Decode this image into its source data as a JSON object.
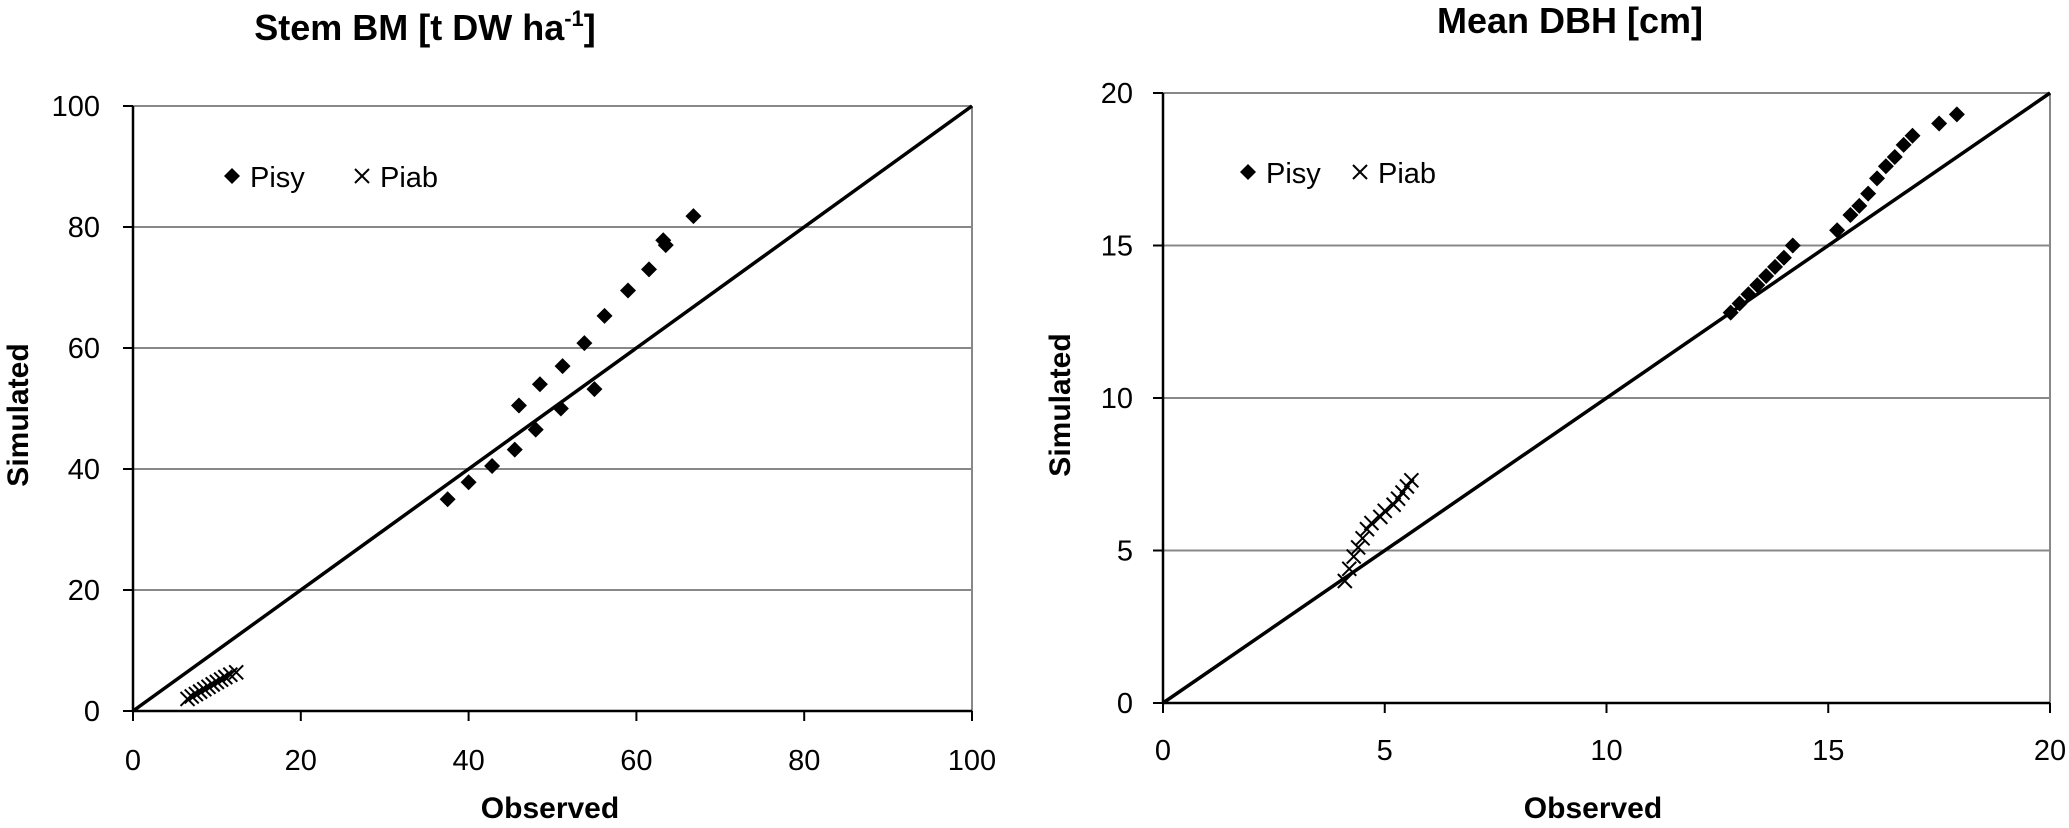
{
  "chart_data": [
    {
      "type": "scatter",
      "title": "Stem BM [t DW ha",
      "title_sup": "-1",
      "title_end": "]",
      "xlabel": "Observed",
      "ylabel": "Simulated",
      "xlim": [
        0,
        100
      ],
      "ylim": [
        0,
        100
      ],
      "xticks": [
        0,
        20,
        40,
        60,
        80,
        100
      ],
      "yticks": [
        0,
        20,
        40,
        60,
        80,
        100
      ],
      "grid": "horizontal",
      "legend_position": "top-left",
      "reference_line": [
        [
          0,
          0
        ],
        [
          100,
          100
        ]
      ],
      "series": [
        {
          "name": "Pisy",
          "marker": "diamond",
          "points": [
            [
              37.5,
              35.0
            ],
            [
              40.0,
              37.8
            ],
            [
              42.8,
              40.5
            ],
            [
              45.5,
              43.2
            ],
            [
              48.0,
              46.5
            ],
            [
              51.0,
              50.0
            ],
            [
              55.0,
              53.2
            ],
            [
              46.0,
              50.5
            ],
            [
              48.5,
              54.0
            ],
            [
              51.2,
              57.0
            ],
            [
              53.8,
              60.8
            ],
            [
              56.2,
              65.3
            ],
            [
              59.0,
              69.5
            ],
            [
              61.5,
              73.0
            ],
            [
              63.5,
              77.0
            ],
            [
              63.2,
              77.8
            ],
            [
              66.8,
              81.8
            ]
          ]
        },
        {
          "name": "Piab",
          "marker": "x",
          "points": [
            [
              6.5,
              2.0
            ],
            [
              7.0,
              2.4
            ],
            [
              7.5,
              2.8
            ],
            [
              8.0,
              3.2
            ],
            [
              8.5,
              3.6
            ],
            [
              9.0,
              4.0
            ],
            [
              9.5,
              4.4
            ],
            [
              10.0,
              4.8
            ],
            [
              10.5,
              5.2
            ],
            [
              11.0,
              5.6
            ],
            [
              11.6,
              6.0
            ],
            [
              12.3,
              6.4
            ]
          ]
        }
      ]
    },
    {
      "type": "scatter",
      "title": "Mean DBH [cm]",
      "xlabel": "Observed",
      "ylabel": "Simulated",
      "xlim": [
        0,
        20
      ],
      "ylim": [
        0,
        20
      ],
      "xticks": [
        0,
        5,
        10,
        15,
        20
      ],
      "yticks": [
        0,
        5,
        10,
        15,
        20
      ],
      "grid": "horizontal",
      "legend_position": "top-left",
      "reference_line": [
        [
          0,
          0
        ],
        [
          20,
          20
        ]
      ],
      "series": [
        {
          "name": "Pisy",
          "marker": "diamond",
          "points": [
            [
              12.8,
              12.8
            ],
            [
              13.0,
              13.1
            ],
            [
              13.2,
              13.4
            ],
            [
              13.4,
              13.7
            ],
            [
              13.6,
              14.0
            ],
            [
              13.8,
              14.3
            ],
            [
              14.0,
              14.6
            ],
            [
              14.2,
              15.0
            ],
            [
              15.2,
              15.5
            ],
            [
              15.5,
              16.0
            ],
            [
              15.7,
              16.3
            ],
            [
              15.9,
              16.7
            ],
            [
              16.1,
              17.2
            ],
            [
              16.3,
              17.6
            ],
            [
              16.5,
              17.9
            ],
            [
              16.7,
              18.3
            ],
            [
              16.9,
              18.6
            ],
            [
              17.5,
              19.0
            ],
            [
              17.9,
              19.3
            ]
          ]
        },
        {
          "name": "Piab",
          "marker": "x",
          "points": [
            [
              4.1,
              4.0
            ],
            [
              4.2,
              4.4
            ],
            [
              4.3,
              4.8
            ],
            [
              4.4,
              5.1
            ],
            [
              4.5,
              5.4
            ],
            [
              4.6,
              5.7
            ],
            [
              4.7,
              5.9
            ],
            [
              4.9,
              6.1
            ],
            [
              5.0,
              6.3
            ],
            [
              5.2,
              6.5
            ],
            [
              5.3,
              6.7
            ],
            [
              5.4,
              6.9
            ],
            [
              5.5,
              7.1
            ],
            [
              5.6,
              7.3
            ]
          ]
        }
      ]
    }
  ]
}
